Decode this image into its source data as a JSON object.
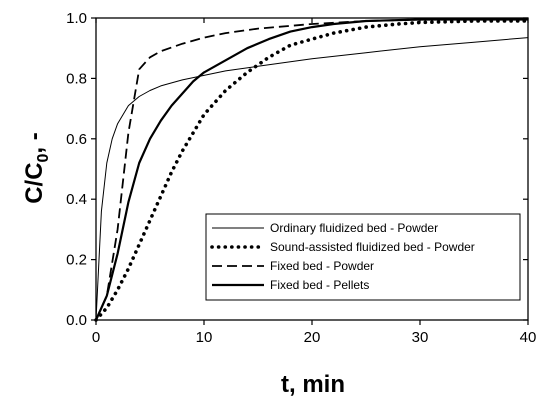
{
  "chart_data": {
    "type": "line",
    "title": "",
    "xlabel": "t, min",
    "ylabel_main": "C/C",
    "ylabel_sub": "0",
    "ylabel_tail": ", -",
    "xlim": [
      0,
      40
    ],
    "ylim": [
      0,
      1.0
    ],
    "xticks": [
      "0",
      "10",
      "20",
      "30",
      "40"
    ],
    "yticks": [
      "0.0",
      "0.2",
      "0.4",
      "0.6",
      "0.8",
      "1.0"
    ],
    "grid": false,
    "legend_position": "bottom-right",
    "series": [
      {
        "name": "Ordinary fluidized bed - Powder",
        "style": "thin-solid",
        "x": [
          0,
          0.5,
          1,
          1.5,
          2,
          3,
          4,
          5,
          6,
          8,
          10,
          12,
          15,
          20,
          25,
          30,
          35,
          40
        ],
        "y": [
          0,
          0.36,
          0.52,
          0.6,
          0.65,
          0.71,
          0.74,
          0.76,
          0.775,
          0.795,
          0.81,
          0.825,
          0.84,
          0.865,
          0.885,
          0.905,
          0.92,
          0.935
        ]
      },
      {
        "name": "Sound-assisted fluidized bed - Powder",
        "style": "dotted",
        "x": [
          0,
          1,
          2,
          3,
          4,
          5,
          6,
          7,
          8,
          9,
          10,
          12,
          14,
          16,
          18,
          20,
          22,
          25,
          28,
          30,
          35,
          40
        ],
        "y": [
          0,
          0.04,
          0.1,
          0.17,
          0.25,
          0.33,
          0.41,
          0.49,
          0.56,
          0.62,
          0.68,
          0.76,
          0.82,
          0.87,
          0.91,
          0.93,
          0.95,
          0.97,
          0.98,
          0.985,
          0.99,
          0.99
        ]
      },
      {
        "name": "Fixed bed - Powder",
        "style": "dashed",
        "x": [
          0,
          1,
          2,
          3,
          4,
          5,
          6,
          8,
          10,
          12,
          15,
          20,
          25,
          30,
          40
        ],
        "y": [
          0,
          0.08,
          0.3,
          0.62,
          0.83,
          0.87,
          0.89,
          0.915,
          0.935,
          0.95,
          0.965,
          0.98,
          0.99,
          0.995,
          0.995
        ]
      },
      {
        "name": "Fixed bed - Pellets",
        "style": "thick-solid",
        "x": [
          0,
          1,
          2,
          3,
          4,
          5,
          6,
          7,
          8,
          9,
          10,
          12,
          14,
          16,
          18,
          20,
          22,
          25,
          30,
          35,
          40
        ],
        "y": [
          0,
          0.08,
          0.22,
          0.39,
          0.52,
          0.6,
          0.66,
          0.71,
          0.75,
          0.79,
          0.82,
          0.86,
          0.9,
          0.93,
          0.955,
          0.97,
          0.98,
          0.99,
          0.995,
          0.995,
          0.995
        ]
      }
    ]
  }
}
